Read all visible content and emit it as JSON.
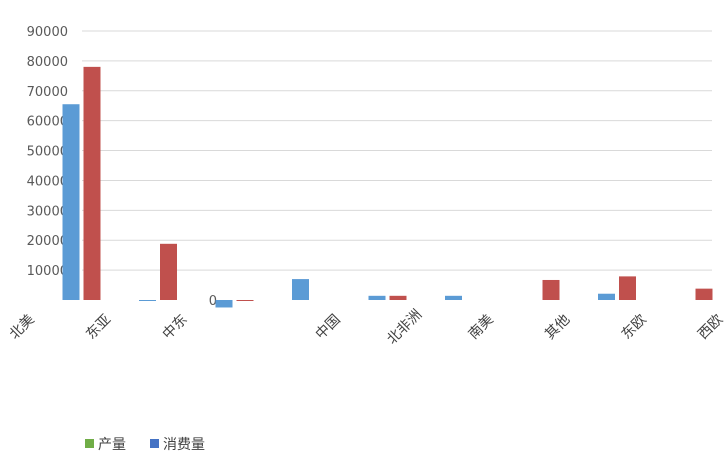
{
  "chart_data": {
    "type": "bar",
    "categories": [
      "北美",
      "东亚",
      "中东",
      "",
      "中国",
      "北非洲",
      "南美",
      "其他",
      "东欧",
      "西欧",
      "北非"
    ],
    "series": [
      {
        "name": "产量",
        "color": "#5b9bd5",
        "values": [
          null,
          65500,
          -200,
          -2500,
          7000,
          1400,
          1400,
          0,
          2100,
          0,
          0
        ]
      },
      {
        "name": "消费量",
        "color": "#c0504d",
        "values": [
          null,
          78000,
          18800,
          -200,
          0,
          1400,
          0,
          6700,
          7900,
          3800,
          1700
        ]
      }
    ],
    "ylim": [
      0,
      90000
    ],
    "yticks": [
      10000,
      20000,
      30000,
      40000,
      50000,
      60000,
      70000,
      80000,
      90000
    ],
    "zero_label": "0",
    "grid": true,
    "legend": {
      "position": "bottom-left",
      "swatches": [
        "#70ad47",
        "#4472c4"
      ]
    }
  }
}
